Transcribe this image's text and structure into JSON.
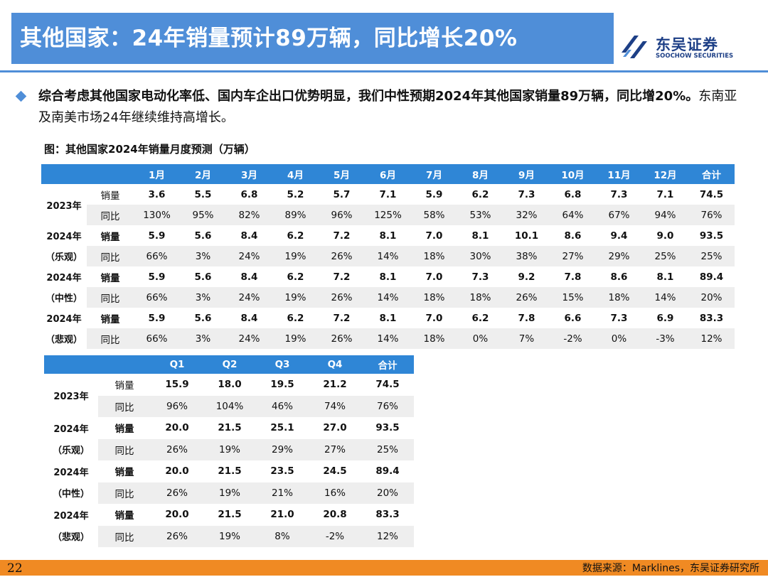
{
  "header": {
    "title": "其他国家：24年销量预计89万辆，同比增长20%",
    "logo_cn": "东吴证券",
    "logo_en": "SOOCHOW SECURITIES"
  },
  "summary": {
    "bold_part": "综合考虑其他国家电动化率低、国内车企出口优势明显，我们中性预期2024年其他国家销量89万辆，同比增20%。",
    "normal_part": "东南亚及南美市场24年继续维持高增长。"
  },
  "figure_title": "图：其他国家2024年销量月度预测（万辆）",
  "monthly_table": {
    "headers": [
      "1月",
      "2月",
      "3月",
      "4月",
      "5月",
      "6月",
      "7月",
      "8月",
      "9月",
      "10月",
      "11月",
      "12月",
      "合计"
    ],
    "groups": [
      {
        "label1": "2023年",
        "label2": "",
        "metric1": "销量",
        "metric2": "同比",
        "sales": [
          "3.6",
          "5.5",
          "6.8",
          "5.2",
          "5.7",
          "7.1",
          "5.9",
          "6.2",
          "7.3",
          "6.8",
          "7.3",
          "7.1",
          "74.5"
        ],
        "yoy": [
          "130%",
          "95%",
          "82%",
          "89%",
          "96%",
          "125%",
          "58%",
          "53%",
          "32%",
          "64%",
          "67%",
          "94%",
          "76%"
        ]
      },
      {
        "label1": "2024年",
        "label2": "（乐观）",
        "metric1": "销量",
        "metric2": "同比",
        "sales": [
          "5.9",
          "5.6",
          "8.4",
          "6.2",
          "7.2",
          "8.1",
          "7.0",
          "8.1",
          "10.1",
          "8.6",
          "9.4",
          "9.0",
          "93.5"
        ],
        "yoy": [
          "66%",
          "3%",
          "24%",
          "19%",
          "26%",
          "14%",
          "18%",
          "30%",
          "38%",
          "27%",
          "29%",
          "25%",
          "25%"
        ]
      },
      {
        "label1": "2024年",
        "label2": "（中性）",
        "metric1": "销量",
        "metric2": "同比",
        "sales": [
          "5.9",
          "5.6",
          "8.4",
          "6.2",
          "7.2",
          "8.1",
          "7.0",
          "7.3",
          "9.2",
          "7.8",
          "8.6",
          "8.1",
          "89.4"
        ],
        "yoy": [
          "66%",
          "3%",
          "24%",
          "19%",
          "26%",
          "14%",
          "18%",
          "18%",
          "26%",
          "15%",
          "18%",
          "14%",
          "20%"
        ]
      },
      {
        "label1": "2024年",
        "label2": "（悲观）",
        "metric1": "销量",
        "metric2": "同比",
        "sales": [
          "5.9",
          "5.6",
          "8.4",
          "6.2",
          "7.2",
          "8.1",
          "7.0",
          "6.2",
          "7.8",
          "6.6",
          "7.3",
          "6.9",
          "83.3"
        ],
        "yoy": [
          "66%",
          "3%",
          "24%",
          "19%",
          "26%",
          "14%",
          "18%",
          "0%",
          "7%",
          "-2%",
          "0%",
          "-3%",
          "12%"
        ]
      }
    ]
  },
  "quarterly_table": {
    "headers": [
      "Q1",
      "Q2",
      "Q3",
      "Q4",
      "合计"
    ],
    "groups": [
      {
        "label1": "2023年",
        "label2": "",
        "metric1": "销量",
        "metric2": "同比",
        "sales": [
          "15.9",
          "18.0",
          "19.5",
          "21.2",
          "74.5"
        ],
        "yoy": [
          "96%",
          "104%",
          "46%",
          "74%",
          "76%"
        ]
      },
      {
        "label1": "2024年",
        "label2": "（乐观）",
        "metric1": "销量",
        "metric2": "同比",
        "sales": [
          "20.0",
          "21.5",
          "25.1",
          "27.0",
          "93.5"
        ],
        "yoy": [
          "26%",
          "19%",
          "29%",
          "27%",
          "25%"
        ]
      },
      {
        "label1": "2024年",
        "label2": "（中性）",
        "metric1": "销量",
        "metric2": "同比",
        "sales": [
          "20.0",
          "21.5",
          "23.5",
          "24.5",
          "89.4"
        ],
        "yoy": [
          "26%",
          "19%",
          "21%",
          "16%",
          "20%"
        ]
      },
      {
        "label1": "2024年",
        "label2": "（悲观）",
        "metric1": "销量",
        "metric2": "同比",
        "sales": [
          "20.0",
          "21.5",
          "21.0",
          "20.8",
          "83.3"
        ],
        "yoy": [
          "26%",
          "19%",
          "8%",
          "-2%",
          "12%"
        ]
      }
    ]
  },
  "footer": {
    "page_number": "22",
    "source": "数据来源：Marklines，东吴证券研究所"
  },
  "colors": {
    "title_bar": "#4f8ed8",
    "table_header": "#2f86d6",
    "footer": "#f08a23",
    "logo": "#1d3f86"
  }
}
